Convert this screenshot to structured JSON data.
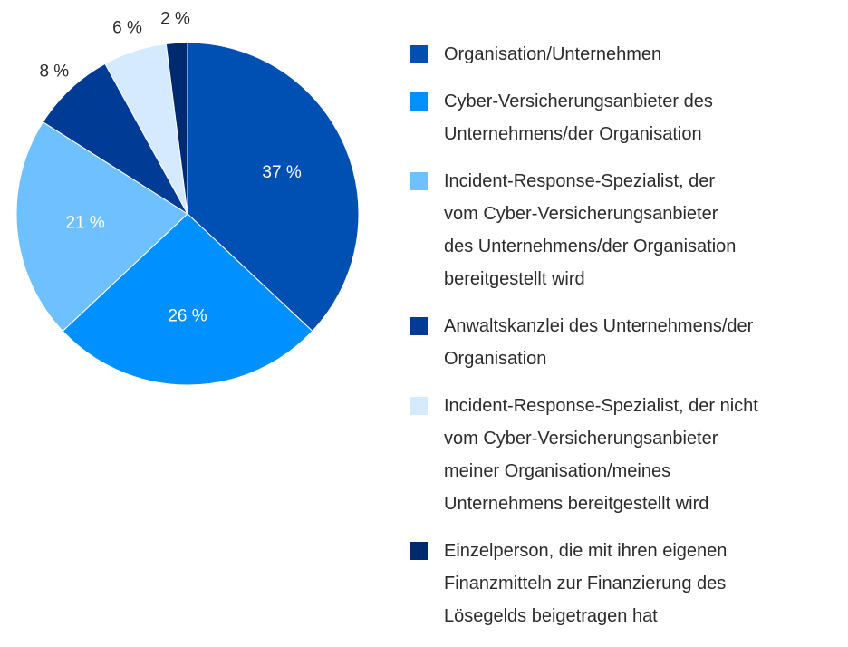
{
  "chart_data": {
    "type": "pie",
    "categories": [
      "Organisation/Unternehmen",
      "Cyber-Versicherungsanbieter des\nUnternehmens/der Organisation",
      "Incident-Response-Spezialist, der\nvom Cyber-Versicherungsanbieter\ndes Unternehmens/der Organisation\nbereitgestellt wird",
      "Anwaltskanzlei des Unternehmens/der\nOrganisation",
      "Incident-Response-Spezialist, der nicht\nvom Cyber-Versicherungsanbieter\nmeiner Organisation/meines\nUnternehmens bereitgestellt wird",
      "Einzelperson, die mit ihren eigenen\nFinanzmitteln zur Finanzierung des\nLösegelds beigetragen hat"
    ],
    "values": [
      37,
      26,
      21,
      8,
      6,
      2
    ],
    "value_labels": [
      "37 %",
      "26 %",
      "21 %",
      "8 %",
      "6 %",
      "2 %"
    ],
    "colors": [
      "#0050b4",
      "#0090ff",
      "#6ec0ff",
      "#003c96",
      "#d6eaff",
      "#002a70"
    ]
  }
}
